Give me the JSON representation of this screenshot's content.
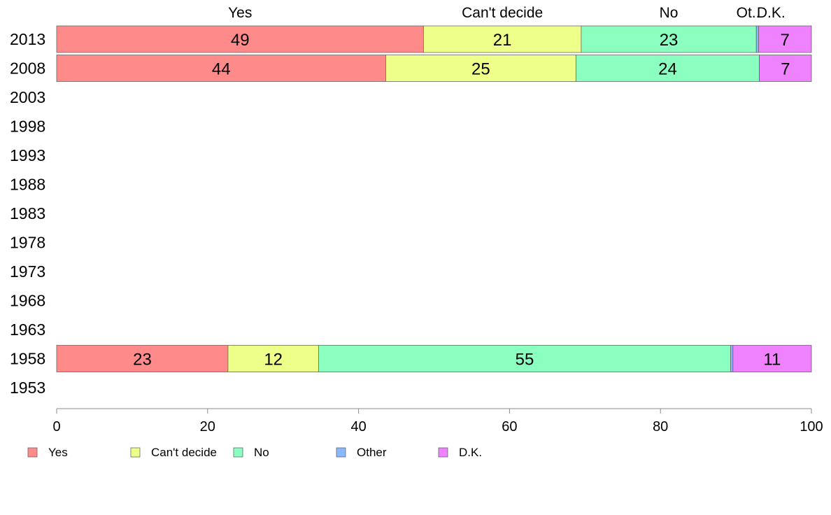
{
  "chart_data": {
    "type": "bar",
    "orientation": "horizontal",
    "stacked": true,
    "categories": [
      "2013",
      "2008",
      "2003",
      "1998",
      "1993",
      "1988",
      "1983",
      "1978",
      "1973",
      "1968",
      "1963",
      "1958",
      "1953"
    ],
    "series": [
      {
        "name": "Yes",
        "color": "#ff8a8a",
        "values": [
          48.6,
          43.6,
          null,
          null,
          null,
          null,
          null,
          null,
          null,
          null,
          null,
          22.7,
          null
        ]
      },
      {
        "name": "Can't decide",
        "color": "#eeff8a",
        "values": [
          20.9,
          25.2,
          null,
          null,
          null,
          null,
          null,
          null,
          null,
          null,
          null,
          12.0,
          null
        ]
      },
      {
        "name": "No",
        "color": "#8affc0",
        "values": [
          23.2,
          24.3,
          null,
          null,
          null,
          null,
          null,
          null,
          null,
          null,
          null,
          54.6,
          null
        ]
      },
      {
        "name": "Other",
        "color": "#8ab8ff",
        "values": [
          0.3,
          0.0,
          null,
          null,
          null,
          null,
          null,
          null,
          null,
          null,
          null,
          0.3,
          null
        ]
      },
      {
        "name": "D.K.",
        "color": "#ee82ff",
        "values": [
          7.0,
          6.9,
          null,
          null,
          null,
          null,
          null,
          null,
          null,
          null,
          null,
          10.4,
          null
        ]
      }
    ],
    "data_labels": {
      "2013": [
        "49",
        "21",
        "23",
        "",
        "7"
      ],
      "2008": [
        "44",
        "25",
        "24",
        "",
        "7"
      ],
      "1958": [
        "23",
        "12",
        "55",
        "",
        "11"
      ]
    },
    "top_labels": [
      "Yes",
      "Can't decide",
      "No",
      "Ot..",
      "D.K."
    ],
    "xlim": [
      0,
      100
    ],
    "xticks": [
      "0",
      "20",
      "40",
      "60",
      "80",
      "100"
    ],
    "legend_position": "bottom-left",
    "grid": false
  }
}
